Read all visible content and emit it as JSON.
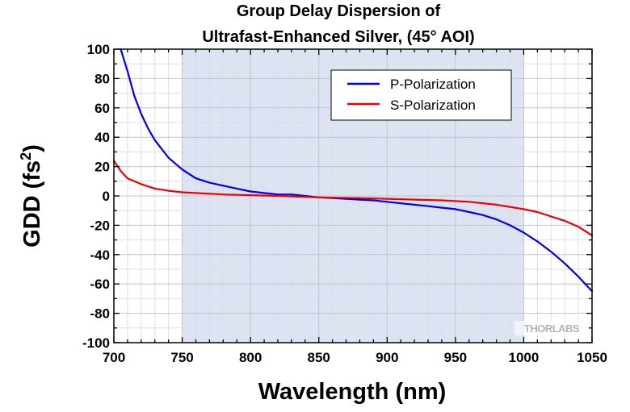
{
  "chart_data": {
    "type": "line",
    "title_lines": [
      "Group Delay Dispersion of",
      "Ultrafast-Enhanced Silver, (45° AOI)"
    ],
    "xlabel": "Wavelength (nm)",
    "ylabel_main": "GDD (fs",
    "ylabel_sup": "2",
    "ylabel_close": ")",
    "xlim": [
      700,
      1050
    ],
    "ylim": [
      -100,
      100
    ],
    "x_ticks": [
      "700",
      "750",
      "800",
      "850",
      "900",
      "950",
      "1000",
      "1050"
    ],
    "y_ticks": [
      "100",
      "80",
      "60",
      "40",
      "20",
      "0",
      "-20",
      "-40",
      "-60",
      "-80",
      "-100"
    ],
    "grid": true,
    "legend_position": "top-right",
    "shaded_region": {
      "x": [
        750,
        1000
      ],
      "color": "#dce3f3"
    },
    "series": [
      {
        "name": "P-Polarization",
        "color": "#0000ee",
        "x": [
          705,
          710,
          715,
          720,
          725,
          730,
          740,
          750,
          760,
          770,
          780,
          790,
          800,
          810,
          820,
          830,
          840,
          850,
          860,
          870,
          880,
          890,
          900,
          910,
          920,
          930,
          940,
          950,
          960,
          970,
          980,
          990,
          1000,
          1010,
          1020,
          1030,
          1040,
          1050
        ],
        "y": [
          100,
          85,
          68,
          56,
          46,
          38,
          26,
          18,
          12,
          9,
          7,
          5,
          3,
          2,
          1,
          1,
          0,
          -1,
          -1.5,
          -2,
          -2.5,
          -3,
          -4,
          -5,
          -6,
          -7,
          -8,
          -9,
          -11,
          -13,
          -16,
          -20,
          -25,
          -31,
          -38,
          -46,
          -55,
          -65
        ]
      },
      {
        "name": "S-Polarization",
        "color": "#ee0000",
        "x": [
          700,
          705,
          710,
          720,
          730,
          740,
          750,
          760,
          780,
          800,
          820,
          850,
          880,
          900,
          920,
          940,
          960,
          980,
          1000,
          1010,
          1020,
          1030,
          1040,
          1050
        ],
        "y": [
          24,
          17,
          12,
          8,
          5,
          3.5,
          2.5,
          2,
          1,
          0.5,
          0,
          -1,
          -1.5,
          -2,
          -2.5,
          -3,
          -4,
          -6,
          -9,
          -11,
          -14,
          -17,
          -21,
          -27
        ]
      }
    ]
  },
  "logo": {
    "text": "THORLABS",
    "color": "#b4b4b4"
  }
}
